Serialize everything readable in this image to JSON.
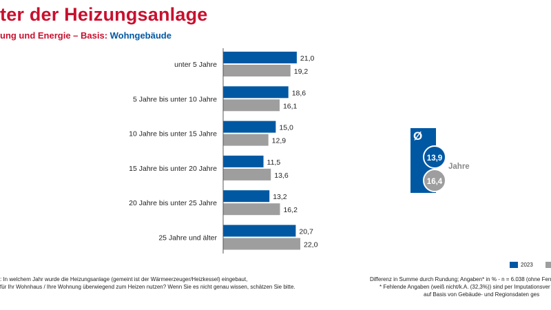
{
  "header": {
    "title": "ter der Heizungsanlage",
    "subtitle_main": "ung und Energie – Basis: ",
    "subtitle_basis": "Wohngebäude"
  },
  "colors": {
    "series_2023": "#0058a3",
    "series_prev": "#9e9e9e",
    "title_red": "#c8102e"
  },
  "chart_data": {
    "type": "bar",
    "orientation": "horizontal",
    "categories": [
      "unter 5 Jahre",
      "5 Jahre bis unter 10 Jahre",
      "10 Jahre bis unter 15 Jahre",
      "15 Jahre bis unter 20 Jahre",
      "20 Jahre bis unter 25 Jahre",
      "25 Jahre und älter"
    ],
    "series": [
      {
        "name": "2023",
        "values": [
          21.0,
          18.6,
          15.0,
          11.5,
          13.2,
          20.7
        ],
        "labels": [
          "21,0",
          "18,6",
          "15,0",
          "11,5",
          "13,2",
          "20,7"
        ]
      },
      {
        "values": [
          19.2,
          16.1,
          12.9,
          13.6,
          16.2,
          22.0
        ],
        "labels": [
          "19,2",
          "16,1",
          "12,9",
          "13,6",
          "16,2",
          "22,0"
        ]
      }
    ],
    "xlim": [
      0,
      22.0
    ],
    "grid": false,
    "legend_position": "bottom-right"
  },
  "average": {
    "symbol": "Ø",
    "value_2023": "13,9",
    "value_prev": "16,4",
    "unit": "Jahre"
  },
  "legend": {
    "label_2023": "2023"
  },
  "footnotes": {
    "left_line1": ": In welchem Jahr wurde die Heizungsanlage (gemeint ist der Wärmeerzeuger/Heizkessel) eingebaut,",
    "left_line2": "für Ihr Wohnhaus / Ihre Wohnung überwiegend zum Heizen nutzen? Wenn Sie es nicht genau wissen, schätzen Sie bitte.",
    "right_line1": "Differenz in Summe durch Rundung; Angaben* in % - n = 6.038 (ohne Fernw",
    "right_line2": "* Fehlende Angaben (weiß nicht/k.A. (32,3%)) sind per Imputationsver",
    "right_line3": "auf Basis von Gebäude- und Regionsdaten ges"
  }
}
